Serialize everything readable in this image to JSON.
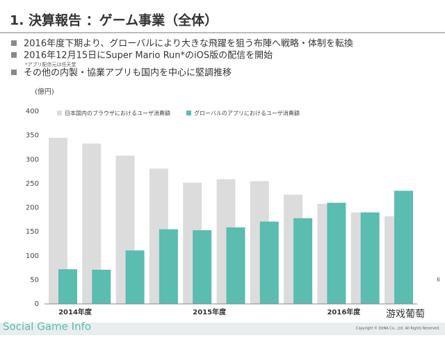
{
  "header": {
    "title": "1. 決算報告 ：ゲーム事業（全体）"
  },
  "bullets": [
    "2016年度下期より、グローバルにより大きな飛躍を狙う布陣へ戦略・体制を転換",
    "2016年12月15日にSuper Mario Run*のiOS版の配信を開始",
    "その他の内製・協業アプリも国内を中心に堅調推移"
  ],
  "note": "*アプリ配信元は任天堂",
  "chart_data": {
    "type": "bar",
    "y_label": "(億円)",
    "categories": [
      "2014年度",
      null,
      null,
      null,
      "2015年度",
      null,
      null,
      null,
      "2016年度",
      null,
      null
    ],
    "series": [
      {
        "name": "日本国内のブラウザにおけるユーザ消費額",
        "color": "#dcdcdc",
        "values": [
          345,
          333,
          308,
          281,
          252,
          259,
          255,
          227,
          208,
          190,
          182
        ]
      },
      {
        "name": "グローバルのアプリにおけるユーザ消費額",
        "color": "#5bbcb0",
        "values": [
          72,
          71,
          111,
          155,
          153,
          159,
          171,
          178,
          210,
          190,
          235
        ]
      }
    ],
    "ylim": [
      0,
      400
    ],
    "yticks": [
      0,
      50,
      100,
      150,
      200,
      250,
      300,
      350,
      400
    ],
    "grid": false,
    "legend": "top"
  },
  "footer": {
    "copyright": "Copyright © DeNA Co., Ltd. All Rights Reserved.",
    "page": "6",
    "watermark_left": "Social Game Info",
    "watermark_right": "游戏葡萄"
  }
}
